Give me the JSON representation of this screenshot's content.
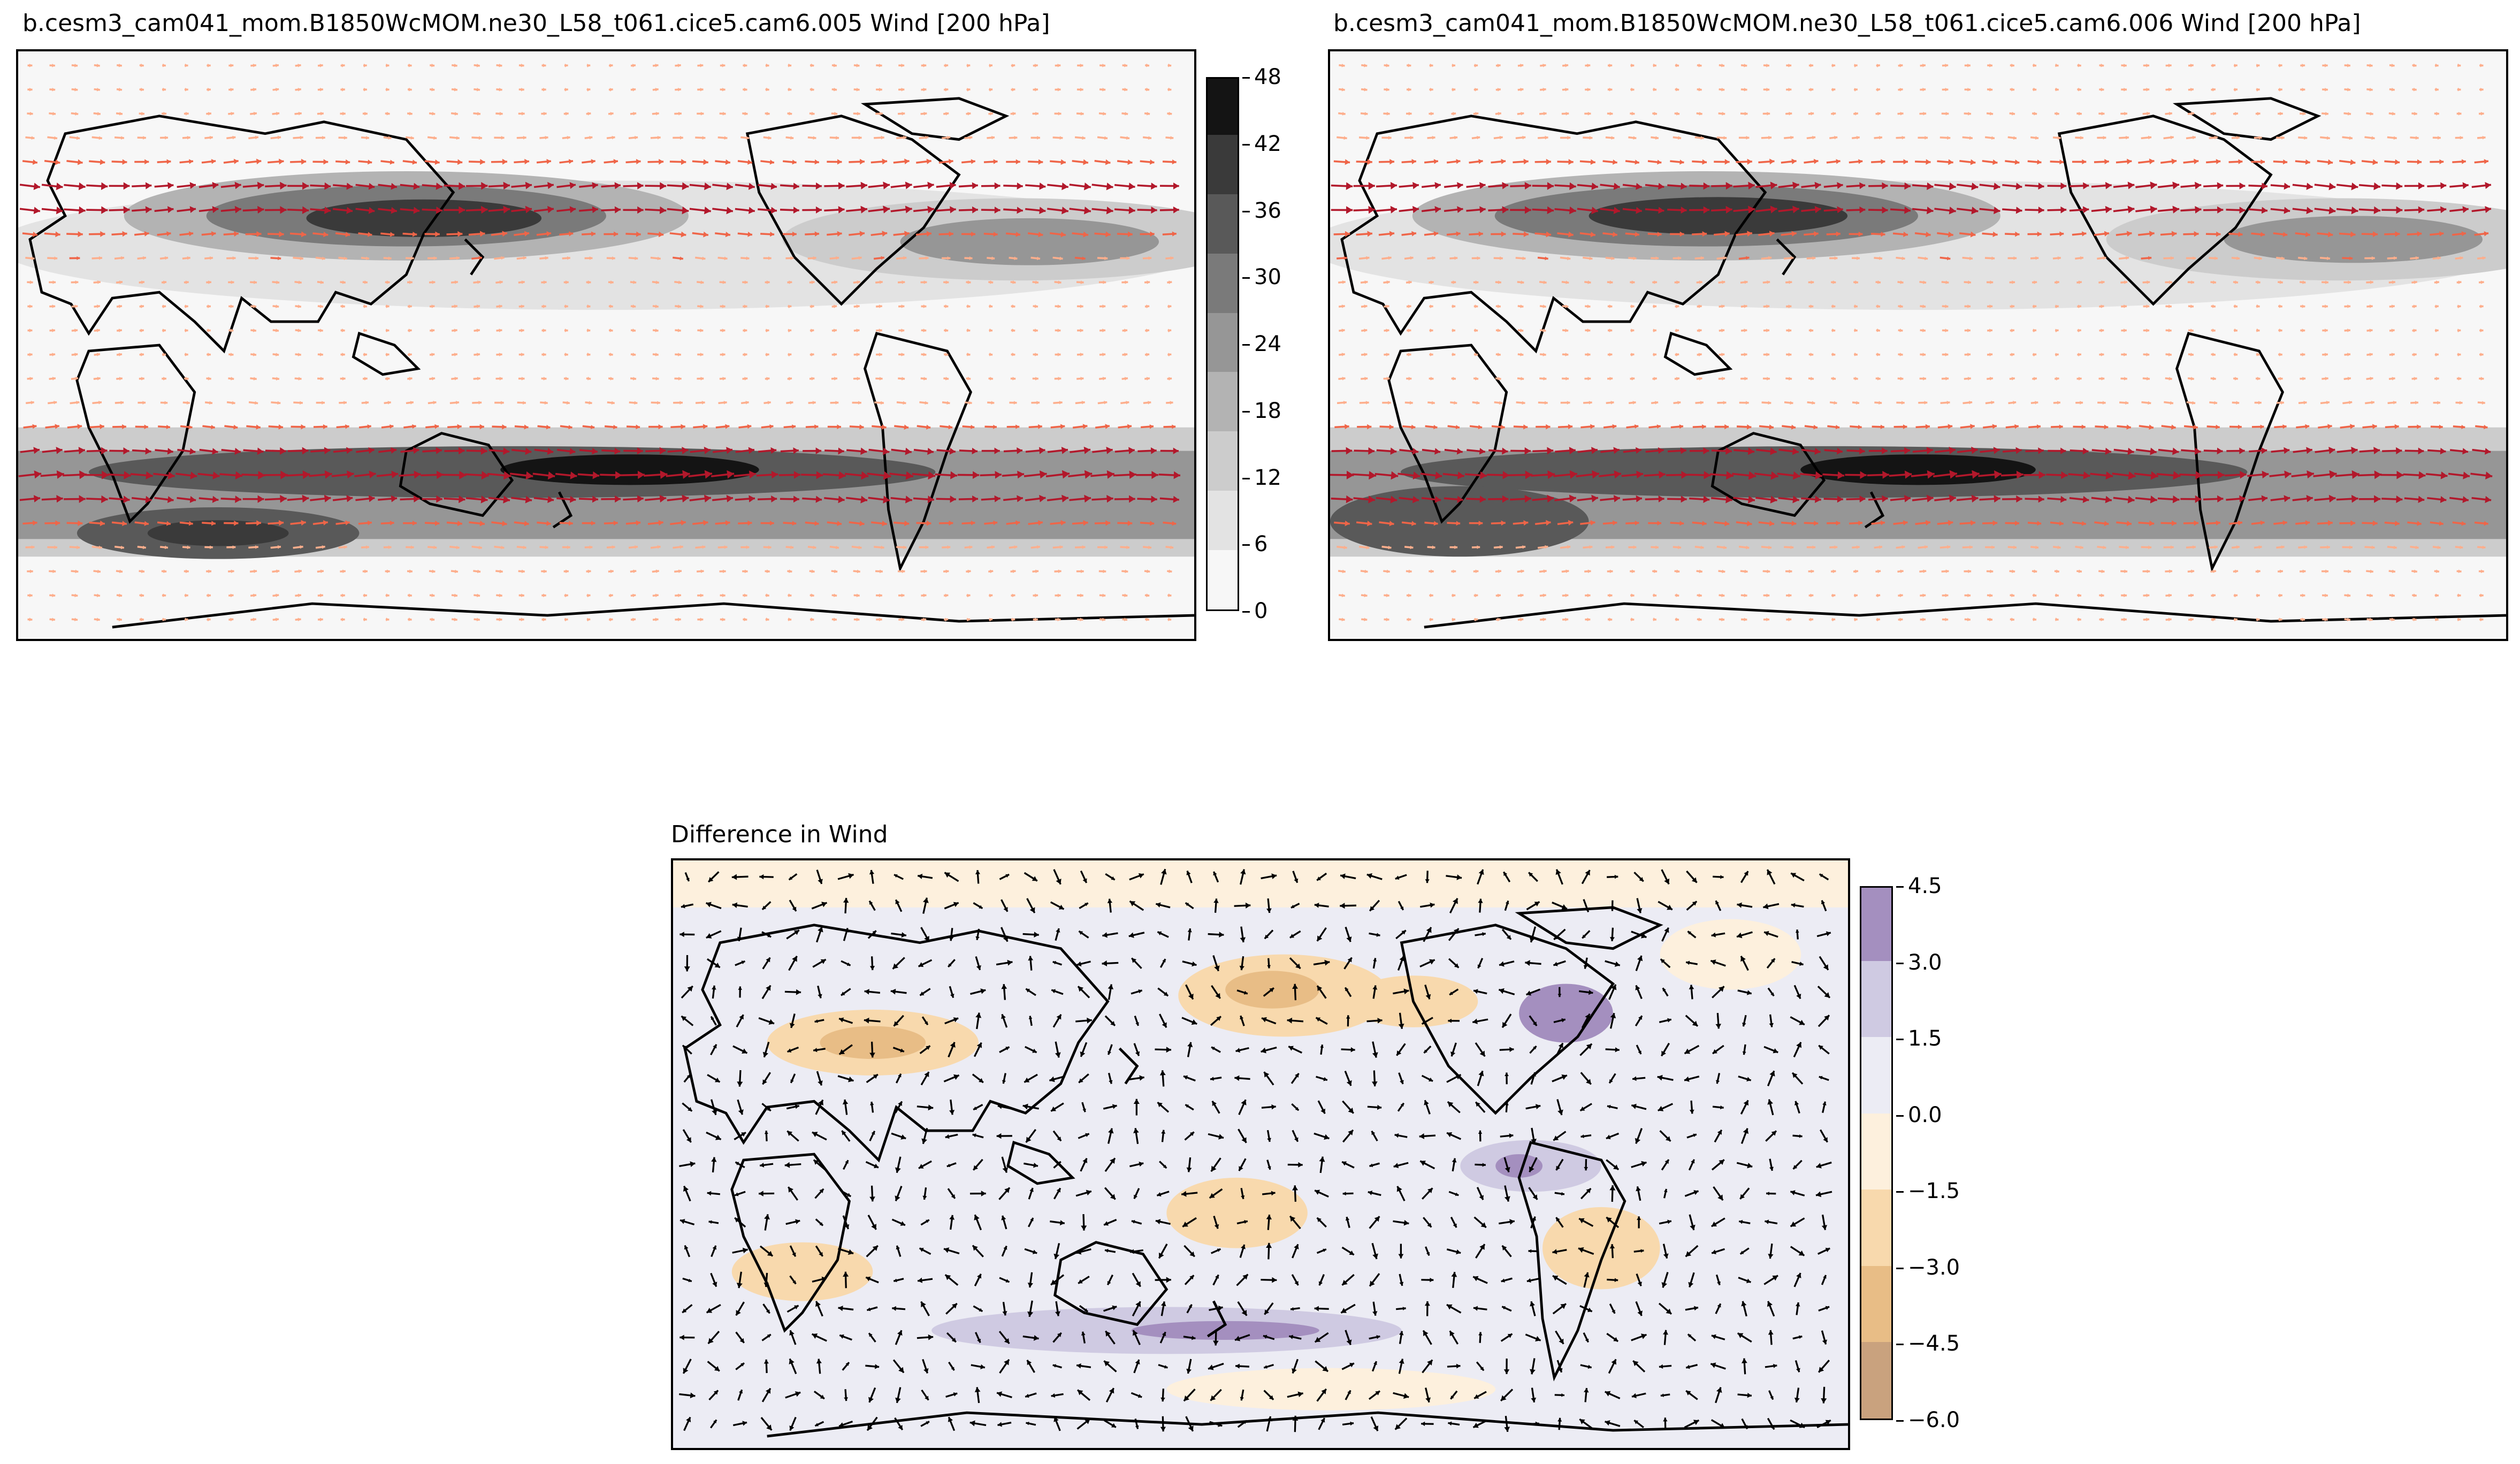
{
  "figure": {
    "panel1": {
      "title": "b.cesm3_cam041_mom.B1850WcMOM.ne30_L58_t061.cice5.cam6.005 Wind [200 hPa]"
    },
    "panel2": {
      "title": "b.cesm3_cam041_mom.B1850WcMOM.ne30_L58_t061.cice5.cam6.006 Wind [200 hPa]"
    },
    "panel3": {
      "title": "Difference in Wind"
    }
  },
  "colorbars": {
    "wind": {
      "ticks": [
        "0",
        "6",
        "12",
        "18",
        "24",
        "30",
        "36",
        "42",
        "48"
      ],
      "colors": [
        "#f7f7f7",
        "#e3e3e3",
        "#cccccc",
        "#b3b3b3",
        "#969696",
        "#7a7a7a",
        "#595959",
        "#3a3a3a",
        "#141414"
      ]
    },
    "difference": {
      "ticks": [
        "−6.0",
        "−4.5",
        "−3.0",
        "−1.5",
        "0.0",
        "1.5",
        "3.0",
        "4.5"
      ],
      "colors": [
        "#c9a27e",
        "#e8bd86",
        "#f8d9ad",
        "#fdf0dd",
        "#ececf4",
        "#cfcae2",
        "#a48fbf"
      ]
    }
  },
  "vector_colors": {
    "fast": "#b2182b",
    "medium": "#ef6548",
    "slow": "#fdae8c",
    "difference": "#000000"
  }
}
